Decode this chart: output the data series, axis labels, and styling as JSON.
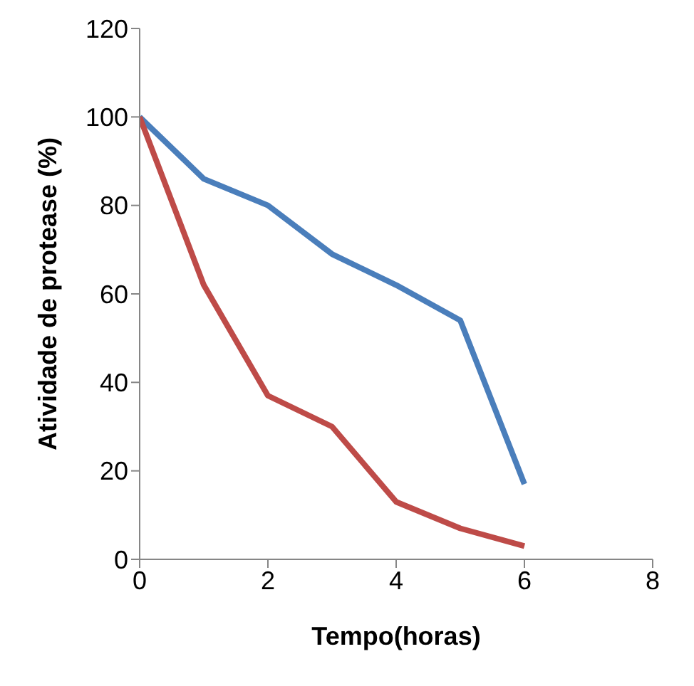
{
  "chart_data": {
    "type": "line",
    "xlabel": "Tempo(horas)",
    "ylabel": "Atividade de protease (%)",
    "x": [
      0,
      1,
      2,
      3,
      4,
      5,
      6
    ],
    "series": [
      {
        "color": "#4a7ebb",
        "values": [
          100,
          86,
          80,
          69,
          62,
          54,
          17
        ]
      },
      {
        "color": "#be4b48",
        "values": [
          100,
          62,
          37,
          30,
          13,
          7,
          3
        ]
      }
    ],
    "xlim": [
      0,
      8
    ],
    "xticks": [
      0,
      2,
      4,
      6,
      8
    ],
    "ylim": [
      0,
      120
    ],
    "yticks": [
      0,
      20,
      40,
      60,
      80,
      100,
      120
    ],
    "grid": false,
    "legend": false,
    "marker": "none",
    "line_style": "solid"
  }
}
